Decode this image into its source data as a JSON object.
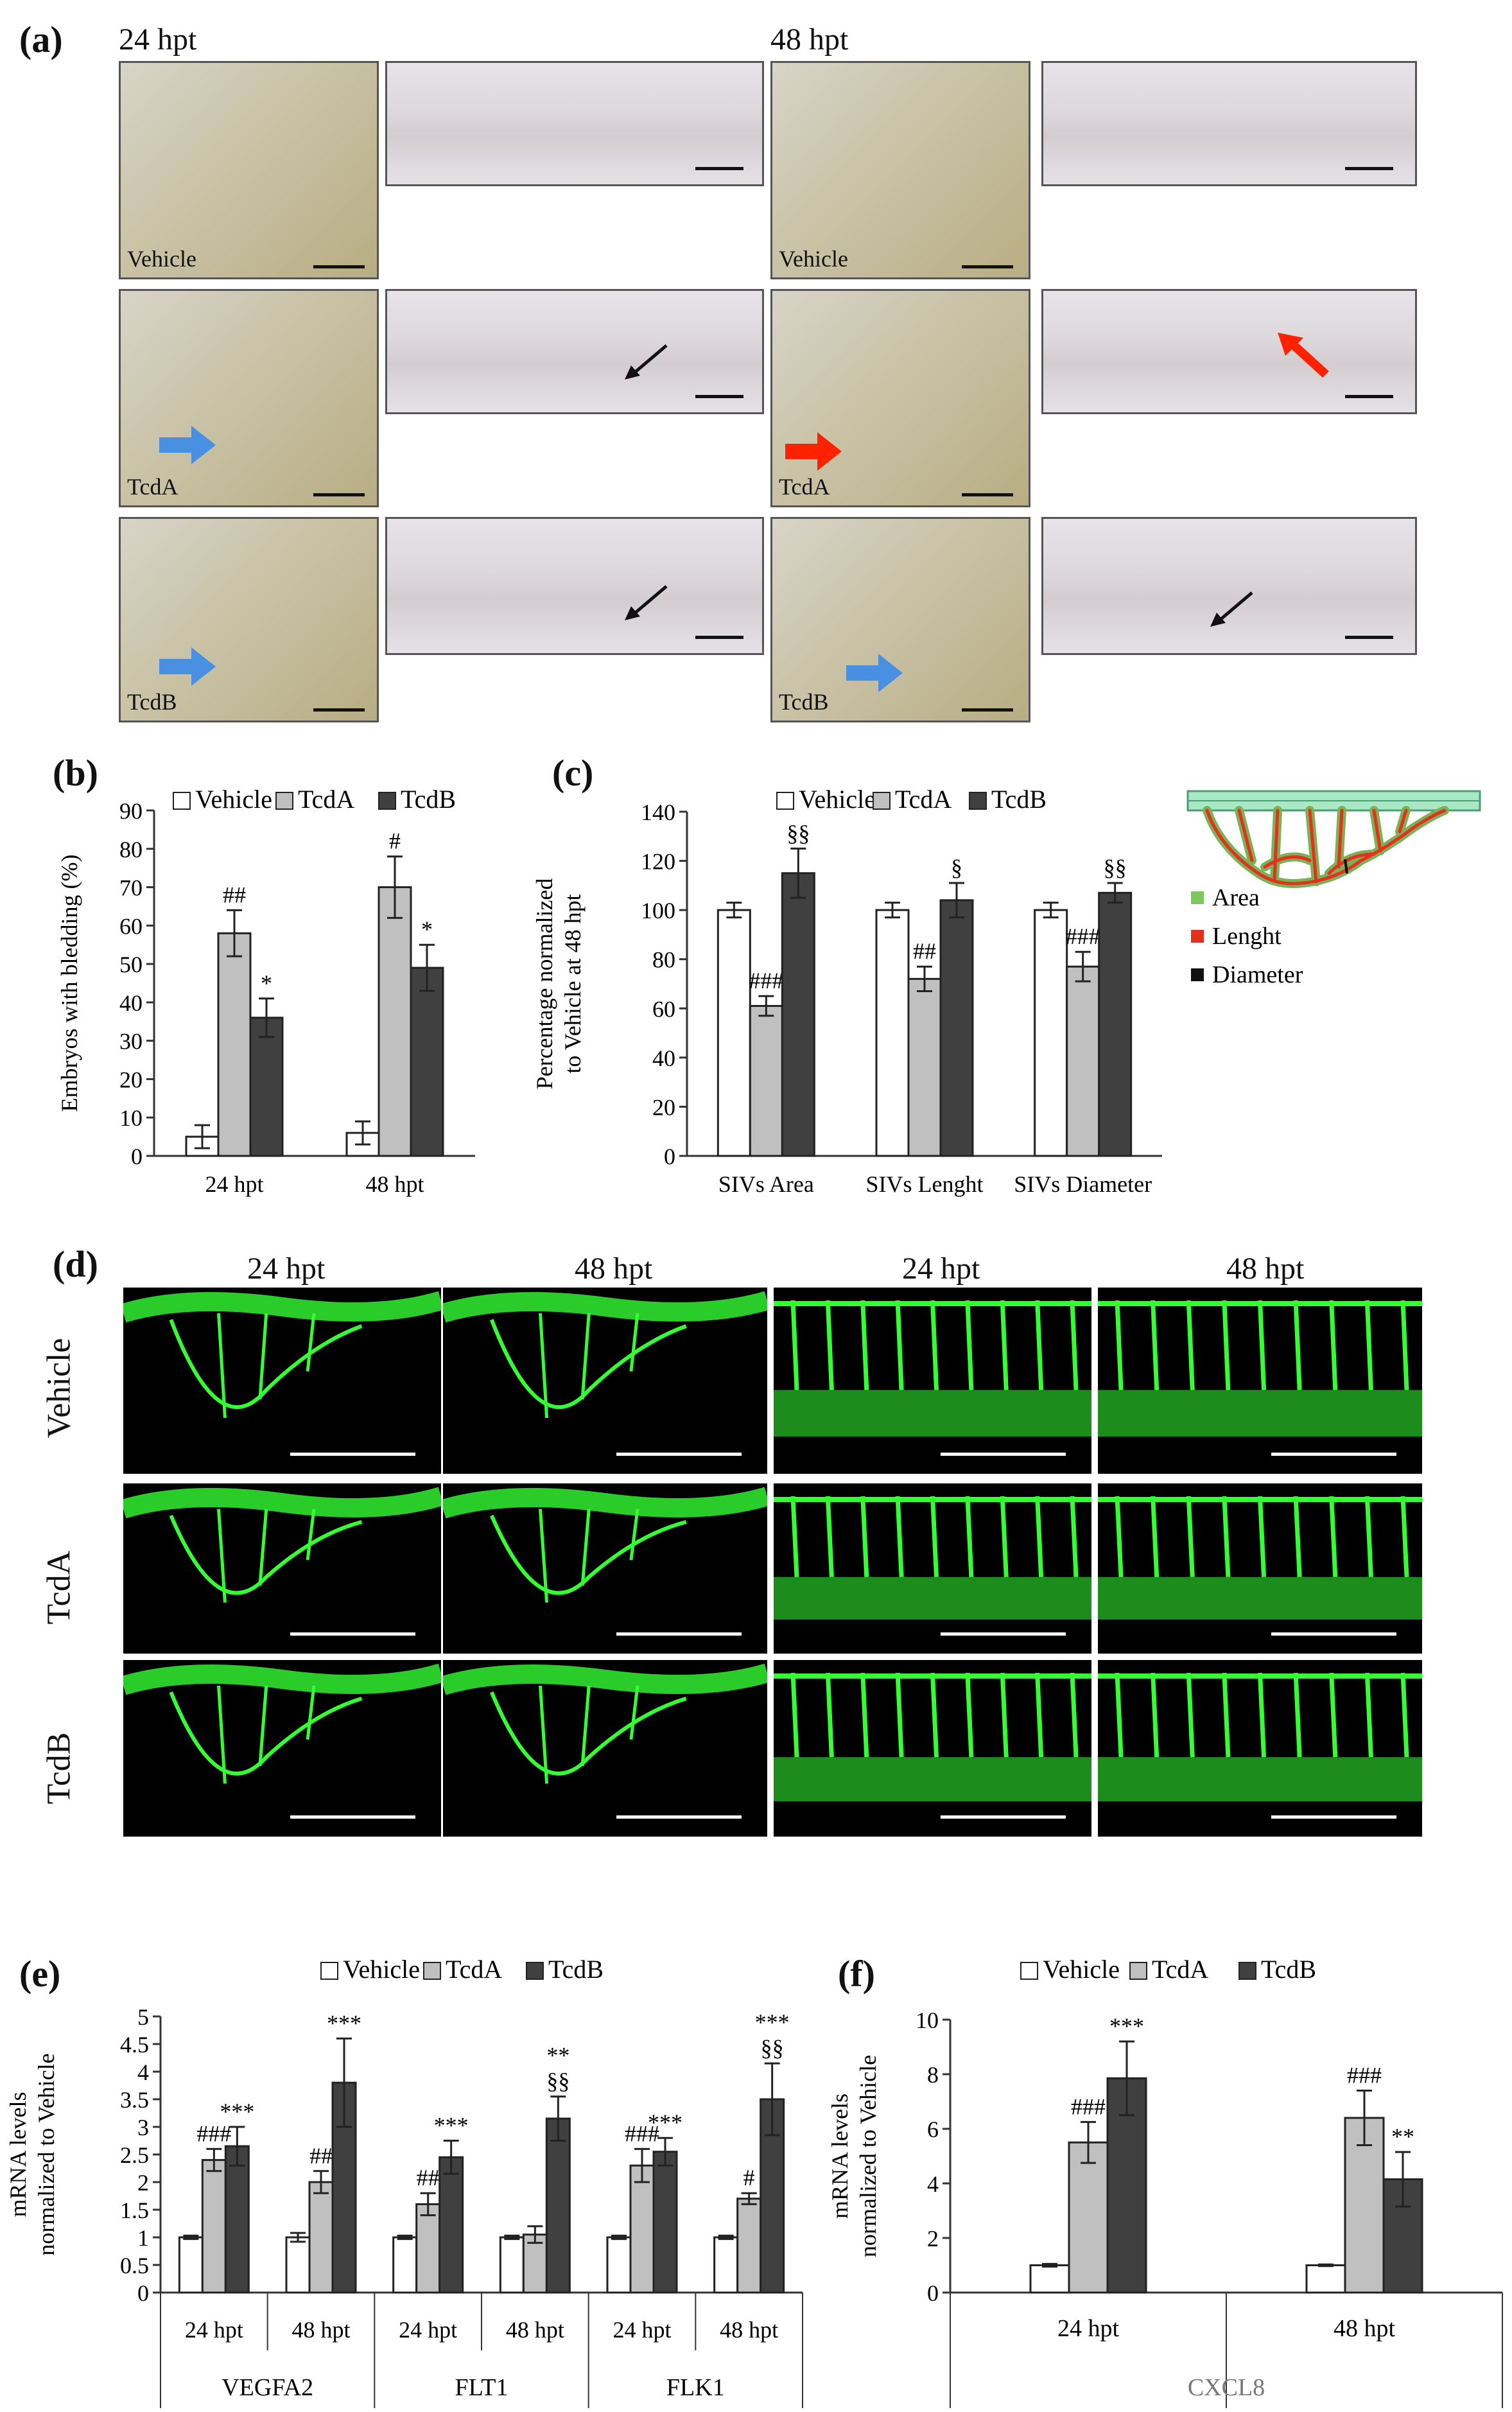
{
  "panels": {
    "a": {
      "letter": "(a)",
      "times": [
        "24 hpt",
        "48 hpt"
      ],
      "labels": [
        "Vehicle",
        "TcdA",
        "TcdB"
      ]
    },
    "b": {
      "letter": "(b)"
    },
    "c": {
      "letter": "(c)"
    },
    "d": {
      "letter": "(d)",
      "column_headers": [
        "24 hpt",
        "48 hpt",
        "24 hpt",
        "48 hpt"
      ],
      "row_labels": [
        "Vehicle",
        "TcdA",
        "TcdB"
      ]
    },
    "e": {
      "letter": "(e)"
    },
    "f": {
      "letter": "(f)"
    }
  },
  "colors": {
    "vehicle": "#ffffff",
    "tcda": "#c0c0c0",
    "tcdb": "#404040",
    "fluorescent": "#33ff33",
    "arrow_blue": "#4a90e2",
    "arrow_red": "#ff2200"
  },
  "chart_data": [
    {
      "id": "b",
      "type": "bar",
      "ylabel": "Embryos with bledding (%)",
      "ylim": [
        0,
        90
      ],
      "yticks": [
        0,
        10,
        20,
        30,
        40,
        50,
        60,
        70,
        80,
        90
      ],
      "categories": [
        "24 hpt",
        "48 hpt"
      ],
      "legend": [
        "Vehicle",
        "TcdA",
        "TcdB"
      ],
      "series": [
        {
          "name": "Vehicle",
          "values": [
            5,
            6
          ],
          "errors": [
            3,
            3
          ],
          "annotations": [
            "",
            ""
          ]
        },
        {
          "name": "TcdA",
          "values": [
            58,
            70
          ],
          "errors": [
            6,
            8
          ],
          "annotations": [
            "##",
            "#"
          ]
        },
        {
          "name": "TcdB",
          "values": [
            36,
            49
          ],
          "errors": [
            5,
            6
          ],
          "annotations": [
            "*",
            "*"
          ]
        }
      ]
    },
    {
      "id": "c",
      "type": "bar",
      "ylabel_lines": [
        "Percentage normalized",
        "to Vehicle at 48 hpt"
      ],
      "ylim": [
        0,
        140
      ],
      "yticks": [
        0,
        20,
        40,
        60,
        80,
        100,
        120,
        140
      ],
      "categories": [
        "SIVs Area",
        "SIVs Lenght",
        "SIVs Diameter"
      ],
      "legend": [
        "Vehicle",
        "TcdA",
        "TcdB"
      ],
      "inset_legend": [
        "Area",
        "Lenght",
        "Diameter"
      ],
      "inset_colors": [
        "#7dc95e",
        "#e53020",
        "#111111"
      ],
      "series": [
        {
          "name": "Vehicle",
          "values": [
            100,
            100,
            100
          ],
          "errors": [
            3,
            3,
            3
          ],
          "annotations": [
            "",
            "",
            ""
          ]
        },
        {
          "name": "TcdA",
          "values": [
            61,
            72,
            77
          ],
          "errors": [
            4,
            5,
            6
          ],
          "annotations": [
            "###",
            "##",
            "###"
          ]
        },
        {
          "name": "TcdB",
          "values": [
            115,
            104,
            107
          ],
          "errors": [
            10,
            7,
            4
          ],
          "annotations": [
            "§§",
            "§",
            "§§"
          ]
        }
      ]
    },
    {
      "id": "e",
      "type": "bar",
      "ylabel_lines": [
        "mRNA levels",
        "normalized to Vehicle"
      ],
      "ylim": [
        0,
        5
      ],
      "yticks": [
        0,
        0.5,
        1,
        1.5,
        2,
        2.5,
        3,
        3.5,
        4,
        4.5,
        5
      ],
      "ytick_labels": [
        "0",
        "0.5",
        "1",
        "1.5",
        "2",
        "2.5",
        "3",
        "3.5",
        "4",
        "4.5",
        "5"
      ],
      "categories": [
        "24 hpt",
        "48 hpt",
        "24 hpt",
        "48 hpt",
        "24 hpt",
        "48 hpt"
      ],
      "groups": [
        "VEGFA2",
        "FLT1",
        "FLK1"
      ],
      "legend": [
        "Vehicle",
        "TcdA",
        "TcdB"
      ],
      "series": [
        {
          "name": "Vehicle",
          "values": [
            1,
            1,
            1,
            1,
            1,
            1
          ],
          "errors": [
            0.03,
            0.08,
            0.03,
            0.03,
            0.03,
            0.03
          ],
          "annotations": [
            "",
            "",
            "",
            "",
            "",
            ""
          ]
        },
        {
          "name": "TcdA",
          "values": [
            2.4,
            2.0,
            1.6,
            1.05,
            2.3,
            1.7
          ],
          "errors": [
            0.2,
            0.2,
            0.2,
            0.15,
            0.3,
            0.1
          ],
          "annotations": [
            "###",
            "##",
            "##",
            "",
            "###",
            "#"
          ]
        },
        {
          "name": "TcdB",
          "values": [
            2.65,
            3.8,
            2.45,
            3.15,
            2.55,
            3.5
          ],
          "errors": [
            0.35,
            0.8,
            0.3,
            0.4,
            0.25,
            0.65
          ],
          "annotations": [
            "***",
            "***",
            "***",
            "**|§§",
            "***",
            "***|§§"
          ]
        }
      ]
    },
    {
      "id": "f",
      "type": "bar",
      "ylabel_lines": [
        "mRNA levels",
        "normalized to Vehicle"
      ],
      "ylim": [
        0,
        10
      ],
      "yticks": [
        0,
        2,
        4,
        6,
        8,
        10
      ],
      "categories": [
        "24 hpt",
        "48 hpt"
      ],
      "groups": [
        "CXCL8"
      ],
      "legend": [
        "Vehicle",
        "TcdA",
        "TcdB"
      ],
      "series": [
        {
          "name": "Vehicle",
          "values": [
            1,
            1
          ],
          "errors": [
            0.05,
            0.03
          ],
          "annotations": [
            "",
            ""
          ]
        },
        {
          "name": "TcdA",
          "values": [
            5.5,
            6.4
          ],
          "errors": [
            0.75,
            1.0
          ],
          "annotations": [
            "###",
            "###"
          ]
        },
        {
          "name": "TcdB",
          "values": [
            7.85,
            4.15
          ],
          "errors": [
            1.35,
            1.0
          ],
          "annotations": [
            "***",
            "**"
          ]
        }
      ]
    }
  ]
}
